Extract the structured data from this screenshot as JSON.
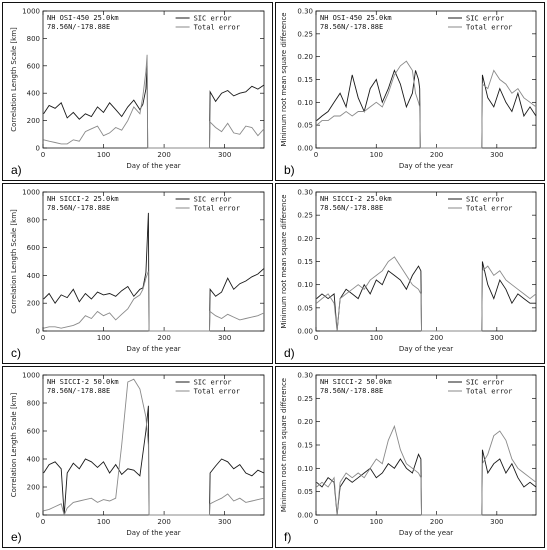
{
  "legend_labels": [
    "SIC error",
    "Total error"
  ],
  "colors": {
    "sic": "#1a1a1a",
    "total": "#8a8a8a",
    "frame": "#111111"
  },
  "chart_data": [
    {
      "panel": "a)",
      "type": "line",
      "annotation": [
        "NH OSI-450 25.0km",
        "78.56N/-178.88E"
      ],
      "xlabel": "Day of the year",
      "ylabel": "Correlation Length Scale [km]",
      "xlim": [
        0,
        365
      ],
      "ylim": [
        0,
        1000
      ],
      "xticks": [
        0,
        100,
        200,
        300
      ],
      "yticks": [
        0,
        200,
        400,
        600,
        800,
        1000
      ],
      "legend_position": "top-right",
      "series": [
        {
          "name": "SIC error",
          "x": [
            1,
            10,
            20,
            30,
            40,
            50,
            60,
            70,
            80,
            90,
            100,
            110,
            120,
            130,
            140,
            150,
            160,
            165,
            170,
            172,
            173,
            275,
            276,
            285,
            295,
            305,
            315,
            325,
            335,
            345,
            355,
            365
          ],
          "y": [
            250,
            310,
            290,
            330,
            220,
            260,
            210,
            250,
            230,
            300,
            260,
            330,
            280,
            230,
            300,
            350,
            280,
            320,
            430,
            600,
            0,
            0,
            410,
            340,
            400,
            420,
            380,
            400,
            410,
            450,
            430,
            460
          ]
        },
        {
          "name": "Total error",
          "x": [
            1,
            10,
            20,
            30,
            40,
            50,
            60,
            70,
            80,
            90,
            100,
            110,
            120,
            130,
            140,
            150,
            160,
            165,
            170,
            172,
            173,
            275,
            276,
            285,
            295,
            305,
            315,
            325,
            335,
            345,
            355,
            365
          ],
          "y": [
            60,
            50,
            40,
            30,
            30,
            60,
            50,
            120,
            140,
            160,
            90,
            110,
            150,
            130,
            200,
            300,
            250,
            380,
            560,
            680,
            0,
            0,
            190,
            150,
            120,
            180,
            110,
            100,
            160,
            150,
            90,
            140
          ]
        }
      ]
    },
    {
      "panel": "b)",
      "type": "line",
      "annotation": [
        "NH OSI-450 25.0km",
        "78.56N/-178.88E"
      ],
      "xlabel": "Day of the year",
      "ylabel": "Minimum root mean square difference",
      "xlim": [
        0,
        365
      ],
      "ylim": [
        0,
        0.3
      ],
      "xticks": [
        0,
        100,
        200,
        300
      ],
      "yticks": [
        0.0,
        0.05,
        0.1,
        0.15,
        0.2,
        0.25,
        0.3
      ],
      "legend_position": "top-right",
      "series": [
        {
          "name": "SIC error",
          "x": [
            1,
            10,
            20,
            30,
            40,
            50,
            60,
            70,
            80,
            90,
            100,
            110,
            120,
            130,
            140,
            150,
            160,
            165,
            170,
            172,
            173,
            275,
            276,
            285,
            295,
            305,
            315,
            325,
            335,
            345,
            355,
            365
          ],
          "y": [
            0.06,
            0.07,
            0.08,
            0.1,
            0.12,
            0.09,
            0.16,
            0.11,
            0.08,
            0.13,
            0.15,
            0.1,
            0.13,
            0.17,
            0.14,
            0.09,
            0.12,
            0.17,
            0.15,
            0.13,
            0.0,
            0.0,
            0.16,
            0.11,
            0.09,
            0.13,
            0.1,
            0.08,
            0.12,
            0.07,
            0.09,
            0.07
          ]
        },
        {
          "name": "Total error",
          "x": [
            1,
            10,
            20,
            30,
            40,
            50,
            60,
            70,
            80,
            90,
            100,
            110,
            120,
            130,
            140,
            150,
            160,
            165,
            170,
            172,
            173,
            275,
            276,
            285,
            295,
            305,
            315,
            325,
            335,
            345,
            355,
            365
          ],
          "y": [
            0.05,
            0.06,
            0.06,
            0.07,
            0.07,
            0.08,
            0.07,
            0.08,
            0.08,
            0.09,
            0.1,
            0.09,
            0.12,
            0.16,
            0.18,
            0.19,
            0.17,
            0.12,
            0.1,
            0.09,
            0.0,
            0.0,
            0.14,
            0.13,
            0.17,
            0.15,
            0.14,
            0.12,
            0.13,
            0.11,
            0.1,
            0.09
          ]
        }
      ]
    },
    {
      "panel": "c)",
      "type": "line",
      "annotation": [
        "NH SICCI-2 25.0km",
        "78.56N/-178.88E"
      ],
      "xlabel": "Day of the year",
      "ylabel": "Correlation Length Scale [km]",
      "xlim": [
        0,
        365
      ],
      "ylim": [
        0,
        1000
      ],
      "xticks": [
        0,
        100,
        200,
        300
      ],
      "yticks": [
        0,
        200,
        400,
        600,
        800,
        1000
      ],
      "legend_position": "top-right",
      "series": [
        {
          "name": "SIC error",
          "x": [
            1,
            10,
            20,
            30,
            40,
            50,
            60,
            70,
            80,
            90,
            100,
            110,
            120,
            130,
            140,
            150,
            160,
            165,
            170,
            174,
            175,
            275,
            276,
            285,
            295,
            305,
            315,
            325,
            335,
            345,
            355,
            365
          ],
          "y": [
            230,
            270,
            200,
            260,
            240,
            300,
            210,
            270,
            230,
            280,
            260,
            270,
            250,
            290,
            320,
            250,
            300,
            310,
            420,
            850,
            0,
            0,
            300,
            250,
            280,
            380,
            300,
            340,
            360,
            390,
            410,
            450
          ]
        },
        {
          "name": "Total error",
          "x": [
            1,
            10,
            20,
            30,
            40,
            50,
            60,
            70,
            80,
            90,
            100,
            110,
            120,
            130,
            140,
            150,
            160,
            165,
            170,
            174,
            175,
            275,
            276,
            285,
            295,
            305,
            315,
            325,
            335,
            345,
            355,
            365
          ],
          "y": [
            20,
            30,
            30,
            20,
            30,
            40,
            60,
            110,
            90,
            140,
            110,
            130,
            80,
            120,
            160,
            230,
            260,
            300,
            380,
            430,
            0,
            0,
            140,
            110,
            90,
            120,
            100,
            80,
            90,
            100,
            110,
            130
          ]
        }
      ]
    },
    {
      "panel": "d)",
      "type": "line",
      "annotation": [
        "NH SICCI-2 25.0km",
        "78.56N/-178.88E"
      ],
      "xlabel": "Day of the year",
      "ylabel": "Minimum root mean square difference",
      "xlim": [
        0,
        365
      ],
      "ylim": [
        0,
        0.3
      ],
      "xticks": [
        0,
        100,
        200,
        300
      ],
      "yticks": [
        0.0,
        0.05,
        0.1,
        0.15,
        0.2,
        0.25,
        0.3
      ],
      "legend_position": "top-right",
      "series": [
        {
          "name": "SIC error",
          "x": [
            1,
            10,
            20,
            30,
            35,
            40,
            50,
            60,
            70,
            80,
            90,
            100,
            110,
            120,
            130,
            140,
            150,
            160,
            170,
            174,
            175,
            275,
            276,
            285,
            295,
            305,
            315,
            325,
            335,
            345,
            355,
            365
          ],
          "y": [
            0.07,
            0.08,
            0.07,
            0.08,
            0.0,
            0.07,
            0.09,
            0.08,
            0.07,
            0.1,
            0.08,
            0.11,
            0.1,
            0.13,
            0.12,
            0.11,
            0.09,
            0.12,
            0.14,
            0.13,
            0.0,
            0.0,
            0.15,
            0.1,
            0.07,
            0.11,
            0.09,
            0.06,
            0.08,
            0.07,
            0.06,
            0.06
          ]
        },
        {
          "name": "Total error",
          "x": [
            1,
            10,
            20,
            30,
            35,
            40,
            50,
            60,
            70,
            80,
            90,
            100,
            110,
            120,
            130,
            140,
            150,
            160,
            170,
            174,
            175,
            275,
            276,
            285,
            295,
            305,
            315,
            325,
            335,
            345,
            355,
            365
          ],
          "y": [
            0.06,
            0.07,
            0.08,
            0.06,
            0.0,
            0.07,
            0.08,
            0.09,
            0.1,
            0.09,
            0.11,
            0.12,
            0.13,
            0.15,
            0.16,
            0.14,
            0.12,
            0.1,
            0.09,
            0.08,
            0.0,
            0.0,
            0.13,
            0.14,
            0.12,
            0.13,
            0.11,
            0.1,
            0.09,
            0.08,
            0.07,
            0.08
          ]
        }
      ]
    },
    {
      "panel": "e)",
      "type": "line",
      "annotation": [
        "NH SICCI-2 50.0km",
        "78.56N/-178.88E"
      ],
      "xlabel": "Day of the year",
      "ylabel": "Correlation Length Scale [km]",
      "xlim": [
        0,
        365
      ],
      "ylim": [
        0,
        1000
      ],
      "xticks": [
        0,
        100,
        200,
        300
      ],
      "yticks": [
        0,
        200,
        400,
        600,
        800,
        1000
      ],
      "legend_position": "top-right",
      "series": [
        {
          "name": "SIC error",
          "x": [
            1,
            10,
            20,
            30,
            35,
            40,
            50,
            60,
            70,
            80,
            90,
            100,
            110,
            120,
            130,
            140,
            150,
            160,
            170,
            174,
            175,
            275,
            276,
            285,
            295,
            305,
            315,
            325,
            335,
            345,
            355,
            365
          ],
          "y": [
            300,
            360,
            380,
            330,
            0,
            300,
            370,
            330,
            400,
            380,
            340,
            380,
            300,
            360,
            290,
            330,
            320,
            280,
            600,
            780,
            0,
            0,
            300,
            350,
            400,
            380,
            330,
            360,
            300,
            280,
            320,
            300
          ]
        },
        {
          "name": "Total error",
          "x": [
            1,
            10,
            20,
            30,
            35,
            40,
            50,
            60,
            70,
            80,
            90,
            100,
            110,
            120,
            130,
            140,
            150,
            160,
            170,
            174,
            175,
            275,
            276,
            285,
            295,
            305,
            315,
            325,
            335,
            345,
            355,
            365
          ],
          "y": [
            30,
            40,
            60,
            80,
            0,
            50,
            90,
            100,
            110,
            120,
            90,
            110,
            100,
            120,
            500,
            950,
            970,
            900,
            700,
            500,
            0,
            0,
            80,
            100,
            120,
            150,
            100,
            120,
            90,
            100,
            110,
            120
          ]
        }
      ]
    },
    {
      "panel": "f)",
      "type": "line",
      "annotation": [
        "NH SICCI-2 50.0km",
        "78.56N/-178.88E"
      ],
      "xlabel": "Day of the year",
      "ylabel": "Minimum root mean square difference",
      "xlim": [
        0,
        365
      ],
      "ylim": [
        0,
        0.3
      ],
      "xticks": [
        0,
        100,
        200,
        300
      ],
      "yticks": [
        0.0,
        0.05,
        0.1,
        0.15,
        0.2,
        0.25,
        0.3
      ],
      "legend_position": "top-right",
      "series": [
        {
          "name": "SIC error",
          "x": [
            1,
            10,
            20,
            30,
            35,
            40,
            50,
            60,
            70,
            80,
            90,
            100,
            110,
            120,
            130,
            140,
            150,
            160,
            170,
            174,
            175,
            275,
            276,
            285,
            295,
            305,
            315,
            325,
            335,
            345,
            355,
            365
          ],
          "y": [
            0.07,
            0.06,
            0.08,
            0.07,
            0.0,
            0.06,
            0.08,
            0.07,
            0.08,
            0.09,
            0.1,
            0.08,
            0.09,
            0.11,
            0.1,
            0.12,
            0.1,
            0.09,
            0.13,
            0.12,
            0.0,
            0.0,
            0.14,
            0.09,
            0.11,
            0.12,
            0.09,
            0.11,
            0.08,
            0.06,
            0.07,
            0.06
          ]
        },
        {
          "name": "Total error",
          "x": [
            1,
            10,
            20,
            30,
            35,
            40,
            50,
            60,
            70,
            80,
            90,
            100,
            110,
            120,
            130,
            140,
            150,
            160,
            170,
            174,
            175,
            275,
            276,
            285,
            295,
            305,
            315,
            325,
            335,
            345,
            355,
            365
          ],
          "y": [
            0.06,
            0.07,
            0.06,
            0.08,
            0.0,
            0.07,
            0.09,
            0.08,
            0.09,
            0.08,
            0.1,
            0.12,
            0.11,
            0.16,
            0.19,
            0.14,
            0.11,
            0.1,
            0.09,
            0.08,
            0.0,
            0.0,
            0.11,
            0.13,
            0.17,
            0.18,
            0.16,
            0.12,
            0.1,
            0.09,
            0.08,
            0.07
          ]
        }
      ]
    }
  ]
}
